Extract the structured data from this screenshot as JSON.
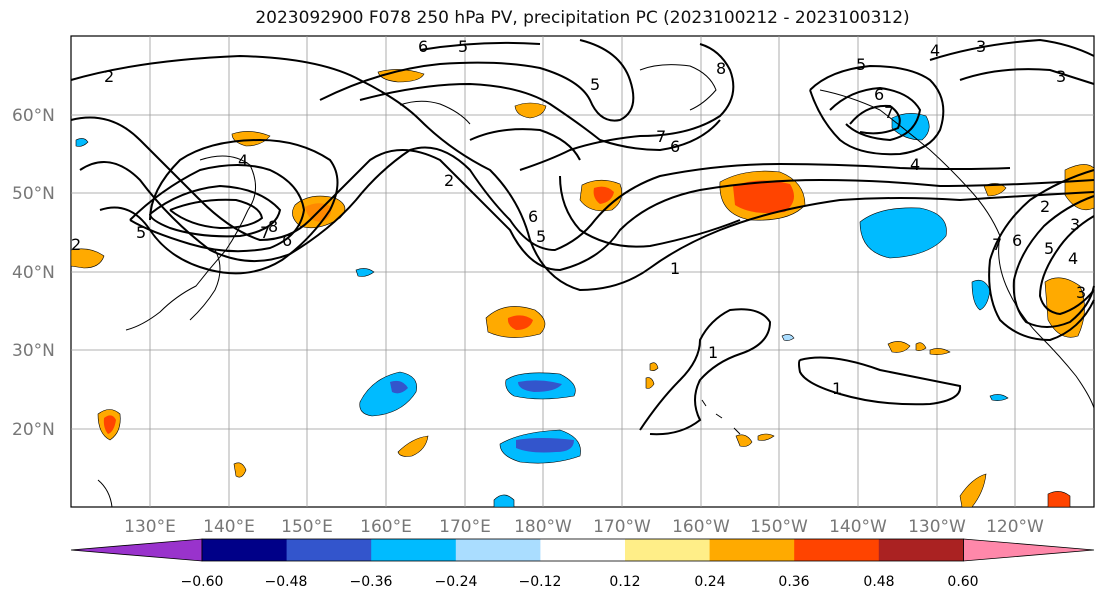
{
  "title": "2023092900 F078 250 hPa PV, precipitation PC (2023100212 - 2023100312)",
  "lat_labels": [
    "60°N",
    "50°N",
    "40°N",
    "30°N",
    "20°N"
  ],
  "lon_labels": [
    "130°E",
    "140°E",
    "150°E",
    "160°E",
    "170°E",
    "180°W",
    "170°W",
    "160°W",
    "150°W",
    "140°W",
    "130°W",
    "120°W"
  ],
  "contour_labels": [
    "2",
    "6",
    "5",
    "5",
    "8",
    "7",
    "6",
    "4",
    "3",
    "3",
    "5",
    "6",
    "7",
    "2",
    "4",
    "4",
    "5",
    "6",
    "7",
    "8",
    "6",
    "5",
    "2",
    "1",
    "1",
    "1",
    "2",
    "3",
    "7",
    "6",
    "5",
    "4",
    "3"
  ],
  "colorbar": {
    "colors": [
      "#9933cc",
      "#000088",
      "#3355cc",
      "#00bbff",
      "#aaddff",
      "#ffffff",
      "#ffee88",
      "#ffaa00",
      "#ff4400",
      "#aa2222",
      "#ff88aa"
    ],
    "tick_labels": [
      "−0.60",
      "−0.48",
      "−0.36",
      "−0.24",
      "−0.12",
      "0.12",
      "0.24",
      "0.36",
      "0.48",
      "0.60"
    ]
  }
}
